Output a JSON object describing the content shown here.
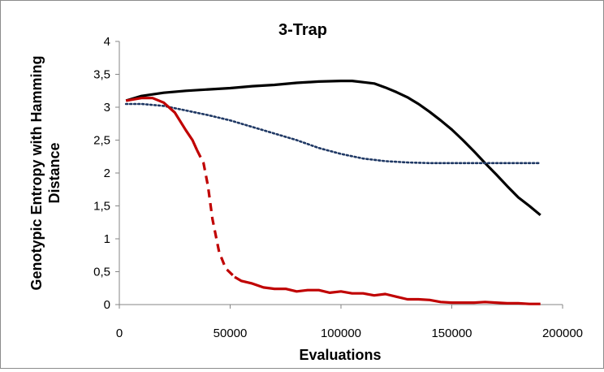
{
  "chart_data": {
    "type": "line",
    "title": "3-Trap",
    "xlabel": "Evaluations",
    "ylabel_lines": [
      "Genotypic Entropy with Hamming",
      "Distance"
    ],
    "xlim": [
      0,
      200000
    ],
    "ylim": [
      0,
      4
    ],
    "x_ticks": [
      0,
      50000,
      100000,
      150000,
      200000
    ],
    "x_tick_labels": [
      "0",
      "50000",
      "100000",
      "150000",
      "200000"
    ],
    "y_ticks": [
      0,
      0.5,
      1,
      1.5,
      2,
      2.5,
      3,
      3.5,
      4
    ],
    "y_tick_labels": [
      "0",
      "0,5",
      "1",
      "1,5",
      "2",
      "2,5",
      "3",
      "3,5",
      "4"
    ],
    "grid": false,
    "legend": "none",
    "series": [
      {
        "color": "#000000",
        "style": "solid",
        "points": [
          [
            3000,
            3.1
          ],
          [
            10000,
            3.17
          ],
          [
            20000,
            3.22
          ],
          [
            30000,
            3.25
          ],
          [
            40000,
            3.27
          ],
          [
            50000,
            3.29
          ],
          [
            60000,
            3.32
          ],
          [
            70000,
            3.34
          ],
          [
            80000,
            3.37
          ],
          [
            90000,
            3.39
          ],
          [
            100000,
            3.4
          ],
          [
            105000,
            3.4
          ],
          [
            110000,
            3.38
          ],
          [
            115000,
            3.36
          ],
          [
            120000,
            3.3
          ],
          [
            125000,
            3.23
          ],
          [
            130000,
            3.15
          ],
          [
            135000,
            3.05
          ],
          [
            140000,
            2.93
          ],
          [
            145000,
            2.8
          ],
          [
            150000,
            2.66
          ],
          [
            155000,
            2.5
          ],
          [
            160000,
            2.33
          ],
          [
            165000,
            2.15
          ],
          [
            170000,
            1.98
          ],
          [
            175000,
            1.8
          ],
          [
            180000,
            1.63
          ],
          [
            185000,
            1.5
          ],
          [
            190000,
            1.36
          ]
        ]
      },
      {
        "color": "#1f3864",
        "style": "dotted",
        "points": [
          [
            3000,
            3.05
          ],
          [
            10000,
            3.05
          ],
          [
            20000,
            3.02
          ],
          [
            30000,
            2.95
          ],
          [
            40000,
            2.88
          ],
          [
            50000,
            2.8
          ],
          [
            60000,
            2.7
          ],
          [
            70000,
            2.6
          ],
          [
            80000,
            2.5
          ],
          [
            90000,
            2.38
          ],
          [
            100000,
            2.29
          ],
          [
            110000,
            2.22
          ],
          [
            120000,
            2.18
          ],
          [
            130000,
            2.16
          ],
          [
            140000,
            2.15
          ],
          [
            150000,
            2.15
          ],
          [
            160000,
            2.15
          ],
          [
            170000,
            2.15
          ],
          [
            180000,
            2.15
          ],
          [
            190000,
            2.15
          ]
        ]
      },
      {
        "color": "#c00000",
        "style": "mixed",
        "segments": [
          {
            "style": "solid",
            "points": [
              [
                3000,
                3.1
              ],
              [
                10000,
                3.14
              ],
              [
                15000,
                3.14
              ],
              [
                20000,
                3.07
              ],
              [
                25000,
                2.92
              ],
              [
                30000,
                2.65
              ],
              [
                33000,
                2.5
              ],
              [
                35000,
                2.35
              ]
            ]
          },
          {
            "style": "dashed",
            "points": [
              [
                35000,
                2.35
              ],
              [
                38000,
                2.15
              ],
              [
                40000,
                1.8
              ],
              [
                42000,
                1.3
              ],
              [
                45000,
                0.8
              ],
              [
                48000,
                0.55
              ],
              [
                52000,
                0.42
              ]
            ]
          },
          {
            "style": "solid",
            "points": [
              [
                52000,
                0.42
              ],
              [
                55000,
                0.36
              ],
              [
                60000,
                0.32
              ],
              [
                65000,
                0.26
              ],
              [
                70000,
                0.24
              ],
              [
                75000,
                0.24
              ],
              [
                80000,
                0.2
              ],
              [
                85000,
                0.22
              ],
              [
                90000,
                0.22
              ],
              [
                95000,
                0.18
              ],
              [
                100000,
                0.2
              ],
              [
                105000,
                0.17
              ],
              [
                110000,
                0.17
              ],
              [
                115000,
                0.14
              ],
              [
                120000,
                0.16
              ],
              [
                125000,
                0.12
              ],
              [
                130000,
                0.08
              ],
              [
                135000,
                0.08
              ],
              [
                140000,
                0.07
              ],
              [
                145000,
                0.04
              ],
              [
                150000,
                0.03
              ],
              [
                155000,
                0.03
              ],
              [
                160000,
                0.03
              ],
              [
                165000,
                0.04
              ],
              [
                170000,
                0.03
              ],
              [
                175000,
                0.02
              ],
              [
                180000,
                0.02
              ],
              [
                185000,
                0.01
              ],
              [
                190000,
                0.01
              ]
            ]
          }
        ]
      }
    ]
  }
}
